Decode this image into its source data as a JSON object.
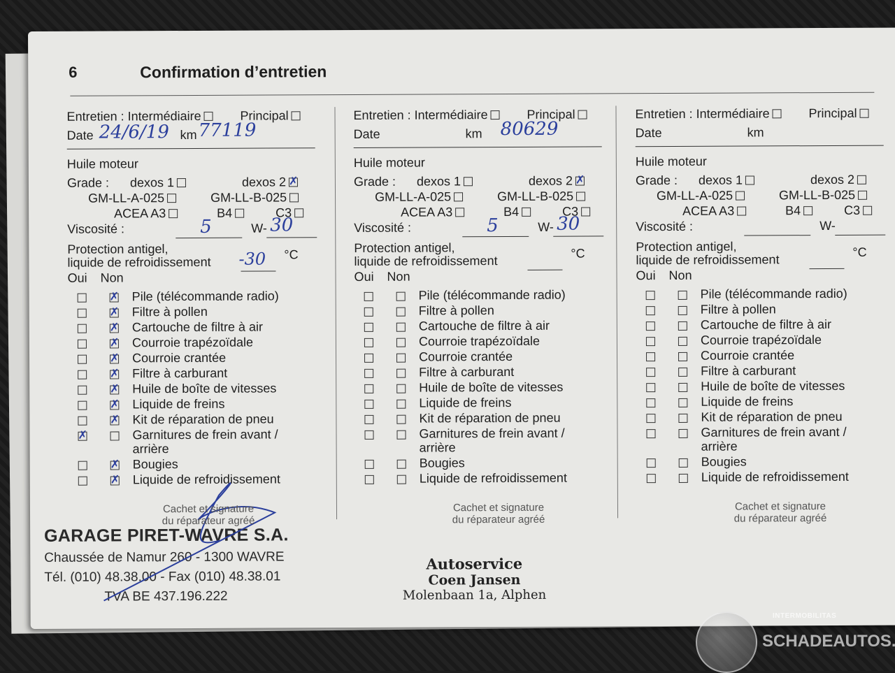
{
  "page_number": "6",
  "title": "Confirmation d’entretien",
  "labels": {
    "entretien": "Entretien : Intermédiaire",
    "principal": "Principal",
    "date": "Date",
    "km": "km",
    "huile": "Huile moteur",
    "grade": "Grade :",
    "dexos1": "dexos 1",
    "dexos2": "dexos 2",
    "gmA": "GM-LL-A-025",
    "gmB": "GM-LL-B-025",
    "acea": "ACEA A3",
    "b4": "B4",
    "c3": "C3",
    "viscosite": "Viscosité :",
    "w": "W-",
    "protection1": "Protection antigel,",
    "protection2": "liquide de refroidissement",
    "degc": "°C",
    "oui": "Oui",
    "non": "Non",
    "cachet1": "Cachet et signature",
    "cachet2": "du réparateur agréé"
  },
  "checklist_items": [
    "Pile (télécommande radio)",
    "Filtre à pollen",
    "Cartouche de filtre à air",
    "Courroie trapézoïdale",
    "Courroie crantée",
    "Filtre à carburant",
    "Huile de boîte de vitesses",
    "Liquide de freins",
    "Kit de réparation de pneu",
    "Garnitures de frein avant / arrière",
    "Bougies",
    "Liquide de refroidissement"
  ],
  "columns": [
    {
      "date": "24/6/19",
      "km": "77119",
      "intermediaire": false,
      "principal": false,
      "grade": {
        "dexos1": false,
        "dexos2": true,
        "gmA": false,
        "gmB": false,
        "acea": false,
        "b4": false,
        "c3": false
      },
      "viscosity_low": "5",
      "viscosity_high": "30",
      "antigel": "-30",
      "checks": [
        "non",
        "non",
        "non",
        "non",
        "non",
        "non",
        "non",
        "non",
        "non",
        "oui",
        "non",
        "non"
      ],
      "stamp": {
        "name": "GARAGE PIRET-WAVRE S.A.",
        "address": "Chaussée de Namur 260 - 1300 WAVRE",
        "phone": "Tél. (010) 48.38.00 - Fax (010) 48.38.01",
        "vat": "TVA BE 437.196.222"
      }
    },
    {
      "date": "",
      "km": "80629",
      "intermediaire": false,
      "principal": false,
      "grade": {
        "dexos1": false,
        "dexos2": true,
        "gmA": false,
        "gmB": false,
        "acea": false,
        "b4": false,
        "c3": false
      },
      "viscosity_low": "5",
      "viscosity_high": "30",
      "antigel": "",
      "checks": [
        "",
        "",
        "",
        "",
        "",
        "",
        "",
        "",
        "",
        "",
        "",
        ""
      ],
      "stamp": {
        "line1": "Autoservice",
        "line2": "Coen Jansen",
        "line3": "Molenbaan 1a, Alphen"
      }
    },
    {
      "date": "",
      "km": "",
      "intermediaire": false,
      "principal": false,
      "grade": {
        "dexos1": false,
        "dexos2": false,
        "gmA": false,
        "gmB": false,
        "acea": false,
        "b4": false,
        "c3": false
      },
      "viscosity_low": "",
      "viscosity_high": "",
      "antigel": "",
      "checks": [
        "",
        "",
        "",
        "",
        "",
        "",
        "",
        "",
        "",
        "",
        "",
        ""
      ]
    }
  ],
  "watermark": {
    "line1": "INTERMOBILITAS",
    "line2": "SCHADEAUTOS.NL"
  },
  "colors": {
    "ink": "#2b3f9c",
    "paper": "#e8e8e5",
    "background": "#1d1d1d"
  }
}
